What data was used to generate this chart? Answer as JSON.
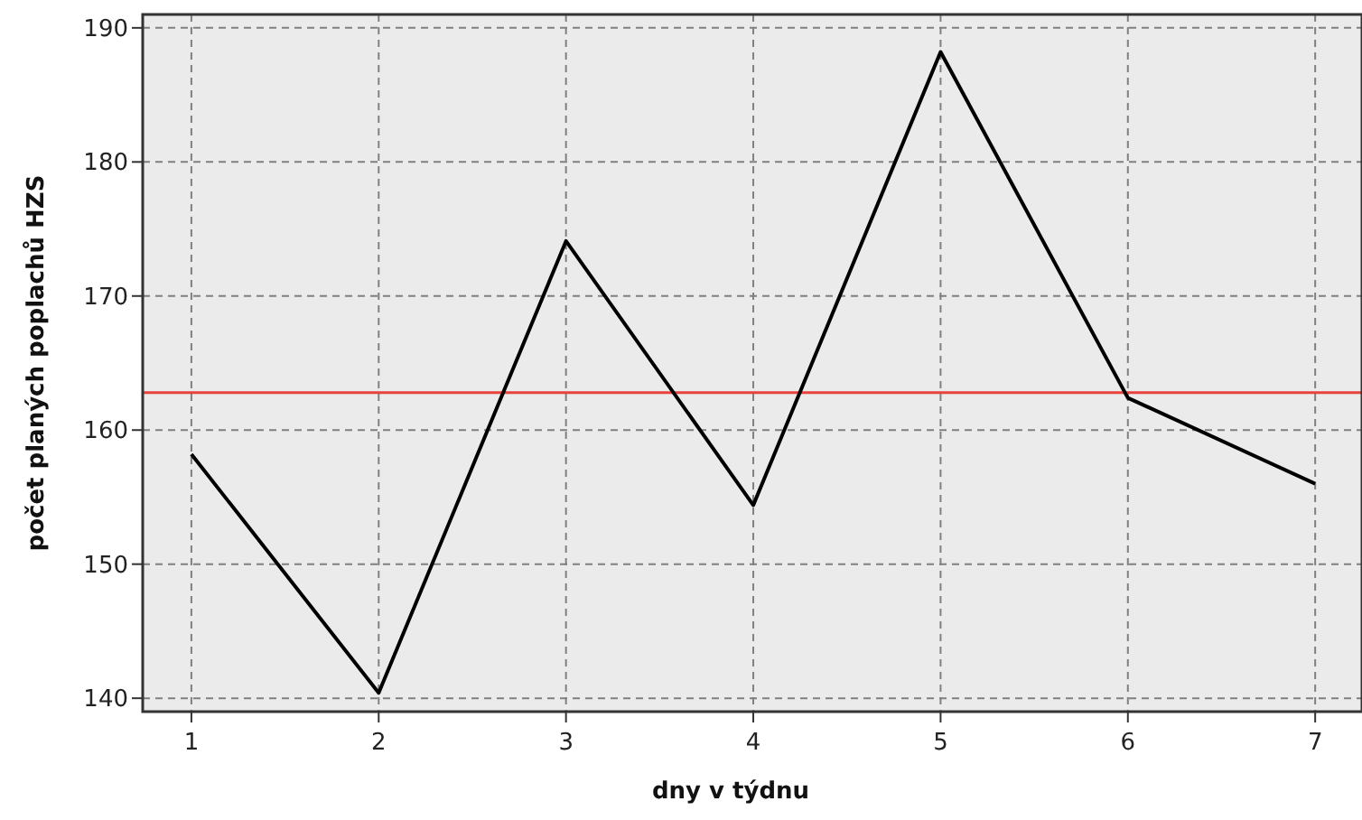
{
  "chart_data": {
    "type": "line",
    "xlabel": "dny v týdnu",
    "ylabel": "počet planých poplachů HZS",
    "x": [
      1,
      2,
      3,
      4,
      5,
      6,
      7
    ],
    "series": [
      {
        "color": "#000000",
        "values": [
          158.2,
          140.4,
          174.1,
          154.4,
          188.2,
          162.4,
          156.0
        ]
      }
    ],
    "xlim": [
      0.74,
      7.25
    ],
    "xticks": [
      1,
      2,
      3,
      4,
      5,
      6,
      7
    ],
    "ylim": [
      139,
      191
    ],
    "yticks": [
      140,
      150,
      160,
      170,
      180,
      190
    ],
    "grid": true,
    "marker": "none",
    "line_style": "solid",
    "ref_lines": [
      {
        "axis": "y",
        "value": 162.8,
        "color": "#e8423c"
      }
    ]
  }
}
